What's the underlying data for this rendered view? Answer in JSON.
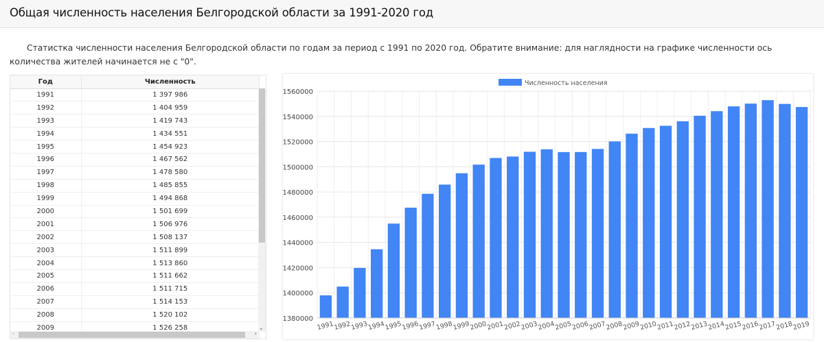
{
  "title": "Общая численность населения Белгородской области за 1991-2020 год",
  "intro": "Статистка численности населения Белгородской области по годам за период с 1991 по 2020 год. Обратите внимание: для наглядности на графике численности ось количества жителей начинается не с \"0\".",
  "table": {
    "headers": [
      "Год",
      "Численность"
    ],
    "rows": [
      [
        "1991",
        "1 397 986"
      ],
      [
        "1992",
        "1 404 959"
      ],
      [
        "1993",
        "1 419 743"
      ],
      [
        "1994",
        "1 434 551"
      ],
      [
        "1995",
        "1 454 923"
      ],
      [
        "1996",
        "1 467 562"
      ],
      [
        "1997",
        "1 478 580"
      ],
      [
        "1998",
        "1 485 855"
      ],
      [
        "1999",
        "1 494 868"
      ],
      [
        "2000",
        "1 501 699"
      ],
      [
        "2001",
        "1 506 976"
      ],
      [
        "2002",
        "1 508 137"
      ],
      [
        "2003",
        "1 511 899"
      ],
      [
        "2004",
        "1 513 860"
      ],
      [
        "2005",
        "1 511 662"
      ],
      [
        "2006",
        "1 511 715"
      ],
      [
        "2007",
        "1 514 153"
      ],
      [
        "2008",
        "1 520 102"
      ],
      [
        "2009",
        "1 526 258"
      ]
    ]
  },
  "chart_data": {
    "type": "bar",
    "title": "",
    "legend": "Численность населения",
    "legend_position": "top",
    "color": "#4285f4",
    "categories": [
      "1991",
      "1992",
      "1993",
      "1994",
      "1995",
      "1996",
      "1997",
      "1998",
      "1999",
      "2000",
      "2001",
      "2002",
      "2003",
      "2004",
      "2005",
      "2006",
      "2007",
      "2008",
      "2009",
      "2010",
      "2011",
      "2012",
      "2013",
      "2014",
      "2015",
      "2016",
      "2017",
      "2018",
      "2019"
    ],
    "values": [
      1397986,
      1404959,
      1419743,
      1434551,
      1454923,
      1467562,
      1478580,
      1485855,
      1494868,
      1501699,
      1506976,
      1508137,
      1511899,
      1513860,
      1511662,
      1511715,
      1514153,
      1520102,
      1526258,
      1530770,
      1532526,
      1536073,
      1540486,
      1544108,
      1547936,
      1550137,
      1552865,
      1549876,
      1547418
    ],
    "ylim": [
      1380000,
      1560000
    ],
    "yticks": [
      "1380000",
      "1400000",
      "1420000",
      "1440000",
      "1460000",
      "1480000",
      "1500000",
      "1520000",
      "1540000",
      "1560000"
    ],
    "grid": true
  }
}
